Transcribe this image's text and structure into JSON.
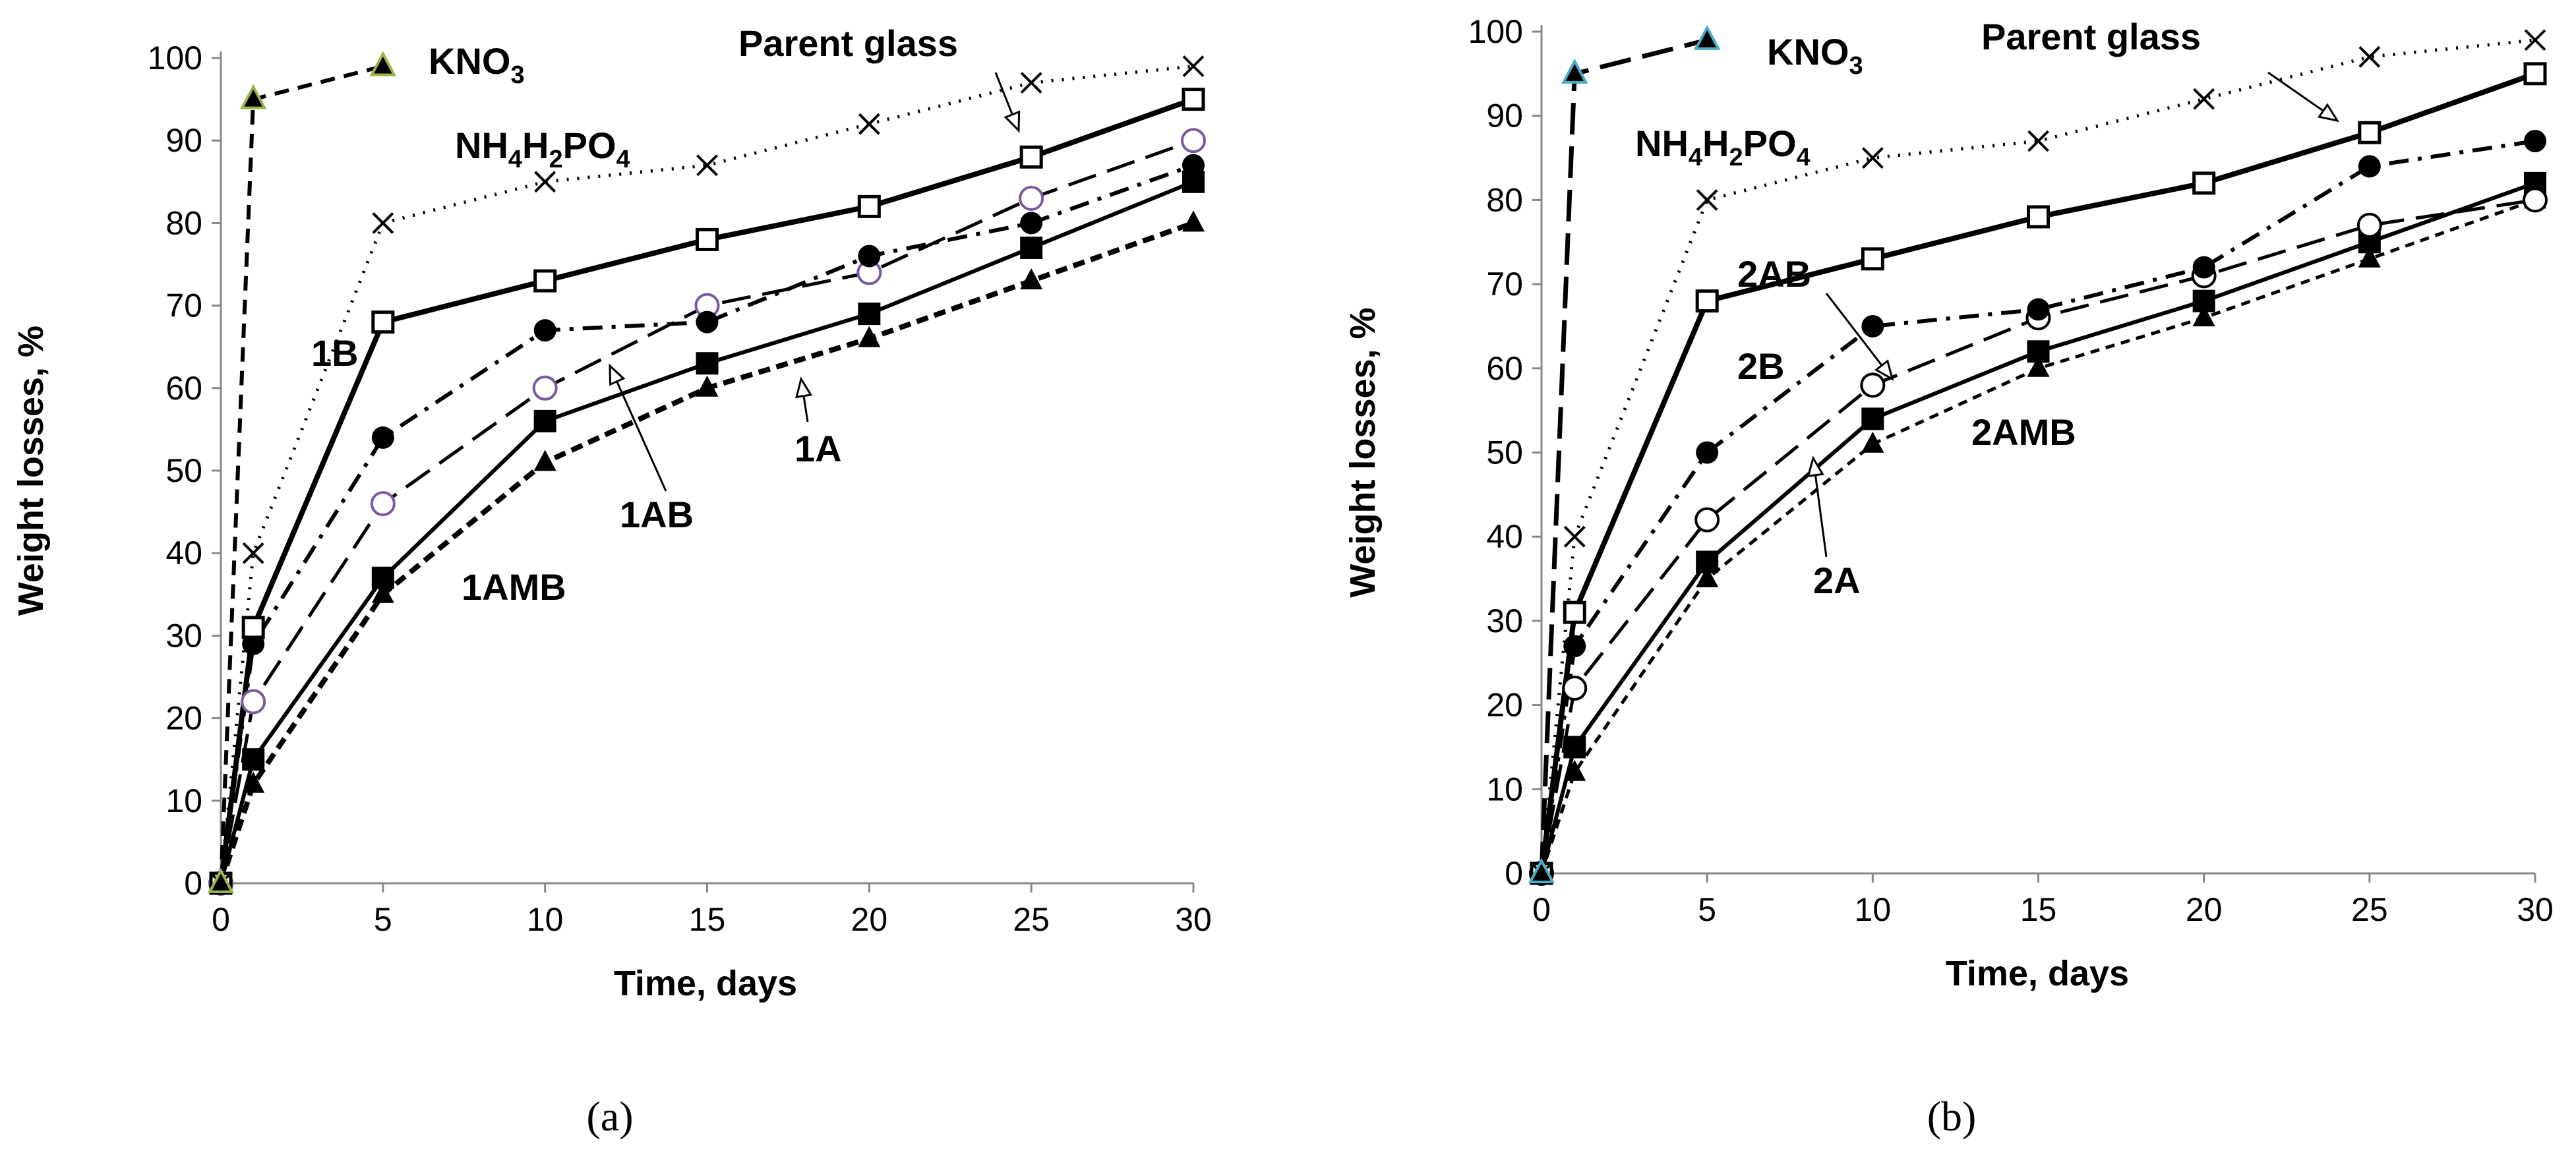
{
  "chart_data": [
    {
      "type": "line",
      "panel_label": "(a)",
      "xlabel": "Time, days",
      "ylabel": "Weight losses, %",
      "xlim": [
        0,
        30
      ],
      "ylim": [
        0,
        100
      ],
      "xticks": [
        0,
        5,
        10,
        15,
        20,
        25,
        30
      ],
      "yticks": [
        0,
        10,
        20,
        30,
        40,
        50,
        60,
        70,
        80,
        90,
        100
      ],
      "grid": false,
      "series": [
        {
          "name": "KNO3",
          "label_main": "KNO",
          "label_sub": "3",
          "label_sub2": "",
          "label_tail": "",
          "line": "dashed",
          "marker": "triangle",
          "marker_fill": "#000000",
          "marker_stroke": "#9ab64b",
          "x": [
            0,
            1,
            5
          ],
          "y": [
            0,
            95,
            99
          ]
        },
        {
          "name": "NH4H2PO4",
          "label_main": "NH",
          "label_sub": "4",
          "label_mid": "H",
          "label_sub2": "2",
          "label_tail": "PO",
          "label_sub3": "4",
          "line": "dotted",
          "marker": "cross",
          "x": [
            0,
            1,
            5,
            10,
            15,
            20,
            25,
            30
          ],
          "y": [
            0,
            40,
            80,
            85,
            87,
            92,
            97,
            99
          ]
        },
        {
          "name": "Parent glass",
          "line": "solid-thick",
          "marker": "open-square",
          "x": [
            0,
            1,
            5,
            10,
            15,
            20,
            25,
            30
          ],
          "y": [
            0,
            31,
            68,
            73,
            78,
            82,
            88,
            95
          ]
        },
        {
          "name": "1B",
          "line": "dashdot",
          "marker": "filled-circle",
          "x": [
            0,
            1,
            5,
            10,
            15,
            20,
            25,
            30
          ],
          "y": [
            0,
            29,
            54,
            67,
            68,
            76,
            80,
            87
          ]
        },
        {
          "name": "1AB",
          "line": "longdash",
          "marker": "open-circle",
          "marker_stroke": "#7a5a9e",
          "x": [
            0,
            1,
            5,
            10,
            15,
            20,
            25,
            30
          ],
          "y": [
            0,
            22,
            46,
            60,
            70,
            74,
            83,
            90
          ]
        },
        {
          "name": "1A",
          "line": "solid",
          "marker": "filled-square",
          "x": [
            0,
            1,
            5,
            10,
            15,
            20,
            25,
            30
          ],
          "y": [
            0,
            15,
            37,
            56,
            63,
            69,
            77,
            85
          ]
        },
        {
          "name": "1AMB",
          "line": "shortdash-thick",
          "marker": "filled-triangle",
          "x": [
            0,
            1,
            5,
            10,
            15,
            20,
            25,
            30
          ],
          "y": [
            0,
            12,
            35,
            51,
            60,
            66,
            73,
            80
          ]
        }
      ],
      "annotations": [
        {
          "text": "KNO3",
          "series": "KNO3"
        },
        {
          "text": "NH4H2PO4",
          "series": "NH4H2PO4"
        },
        {
          "text": "Parent glass",
          "series": "Parent glass"
        },
        {
          "text": "1B",
          "series": "1B"
        },
        {
          "text": "1AB",
          "series": "1AB"
        },
        {
          "text": "1A",
          "series": "1A"
        },
        {
          "text": "1AMB",
          "series": "1AMB"
        }
      ]
    },
    {
      "type": "line",
      "panel_label": "(b)",
      "xlabel": "Time, days",
      "ylabel": "Weight losses, %",
      "xlim": [
        0,
        30
      ],
      "ylim": [
        0,
        100
      ],
      "xticks": [
        0,
        5,
        10,
        15,
        20,
        25,
        30
      ],
      "yticks": [
        0,
        10,
        20,
        30,
        40,
        50,
        60,
        70,
        80,
        90,
        100
      ],
      "grid": false,
      "series": [
        {
          "name": "KNO3",
          "line": "longdash-thick",
          "marker": "triangle",
          "marker_fill": "#000000",
          "marker_stroke": "#4bacc6",
          "x": [
            0,
            1,
            5
          ],
          "y": [
            0,
            95,
            99
          ]
        },
        {
          "name": "NH4H2PO4",
          "line": "dotted",
          "marker": "cross",
          "x": [
            0,
            1,
            5,
            10,
            15,
            20,
            25,
            30
          ],
          "y": [
            0,
            40,
            80,
            85,
            87,
            92,
            97,
            99
          ]
        },
        {
          "name": "Parent glass",
          "line": "solid-thick",
          "marker": "open-square",
          "x": [
            0,
            1,
            5,
            10,
            15,
            20,
            25,
            30
          ],
          "y": [
            0,
            31,
            68,
            73,
            78,
            82,
            88,
            95
          ]
        },
        {
          "name": "2B",
          "line": "dashdot",
          "marker": "filled-circle",
          "x": [
            0,
            1,
            5,
            10,
            15,
            20,
            25,
            30
          ],
          "y": [
            0,
            27,
            50,
            65,
            67,
            72,
            84,
            87
          ]
        },
        {
          "name": "2AB",
          "line": "longdash",
          "marker": "open-circle",
          "x": [
            0,
            1,
            5,
            10,
            15,
            20,
            25,
            30
          ],
          "y": [
            0,
            22,
            42,
            58,
            66,
            71,
            77,
            80
          ]
        },
        {
          "name": "2AMB",
          "line": "solid",
          "marker": "filled-square",
          "x": [
            0,
            1,
            5,
            10,
            15,
            20,
            25,
            30
          ],
          "y": [
            0,
            15,
            37,
            54,
            62,
            68,
            75,
            82
          ]
        },
        {
          "name": "2A",
          "line": "shortdash",
          "marker": "filled-triangle",
          "x": [
            0,
            1,
            5,
            10,
            15,
            20,
            25,
            30
          ],
          "y": [
            0,
            12,
            35,
            51,
            60,
            66,
            73,
            80
          ]
        }
      ],
      "annotations": [
        {
          "text": "KNO3",
          "series": "KNO3"
        },
        {
          "text": "NH4H2PO4",
          "series": "NH4H2PO4"
        },
        {
          "text": "Parent glass",
          "series": "Parent glass"
        },
        {
          "text": "2AB",
          "series": "2AB"
        },
        {
          "text": "2B",
          "series": "2B"
        },
        {
          "text": "2AMB",
          "series": "2AMB"
        },
        {
          "text": "2A",
          "series": "2A"
        }
      ]
    }
  ]
}
